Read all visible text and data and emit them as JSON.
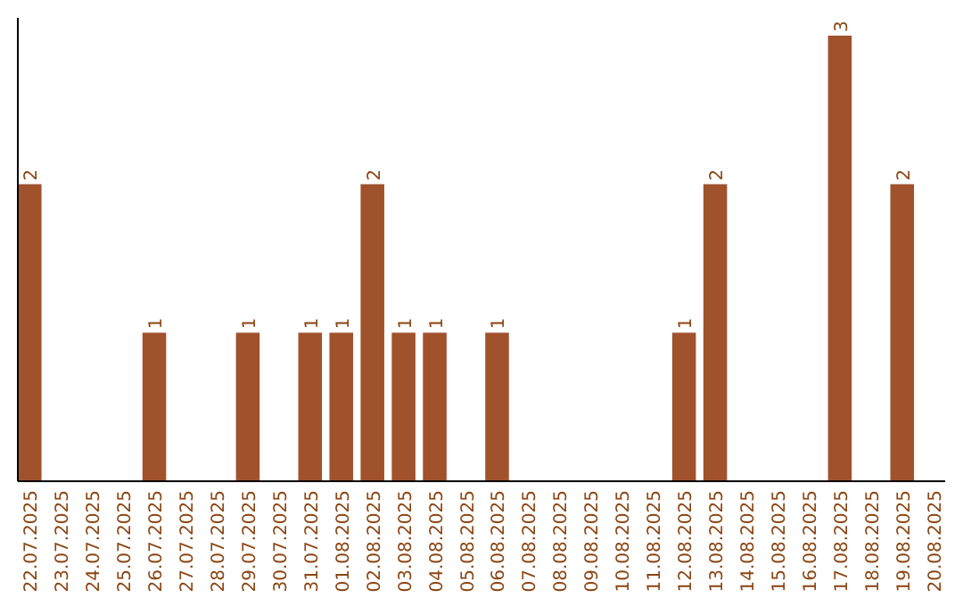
{
  "chart_data": {
    "type": "bar",
    "categories": [
      "22.07.2025",
      "23.07.2025",
      "24.07.2025",
      "25.07.2025",
      "26.07.2025",
      "27.07.2025",
      "28.07.2025",
      "29.07.2025",
      "30.07.2025",
      "31.07.2025",
      "01.08.2025",
      "02.08.2025",
      "03.08.2025",
      "04.08.2025",
      "05.08.2025",
      "06.08.2025",
      "07.08.2025",
      "08.08.2025",
      "09.08.2025",
      "10.08.2025",
      "11.08.2025",
      "12.08.2025",
      "13.08.2025",
      "14.08.2025",
      "15.08.2025",
      "16.08.2025",
      "17.08.2025",
      "18.08.2025",
      "19.08.2025",
      "20.08.2025"
    ],
    "values": [
      2,
      0,
      0,
      0,
      1,
      0,
      0,
      1,
      0,
      1,
      1,
      2,
      1,
      1,
      0,
      1,
      0,
      0,
      0,
      0,
      0,
      1,
      2,
      0,
      0,
      0,
      3,
      0,
      2,
      0
    ],
    "value_labels": [
      "2",
      null,
      null,
      null,
      "1",
      null,
      null,
      "1",
      null,
      "1",
      "1",
      "2",
      "1",
      "1",
      null,
      "1",
      null,
      null,
      null,
      null,
      null,
      "1",
      "2",
      null,
      null,
      null,
      "3",
      null,
      "2",
      null
    ],
    "color": "#a0522d"
  }
}
